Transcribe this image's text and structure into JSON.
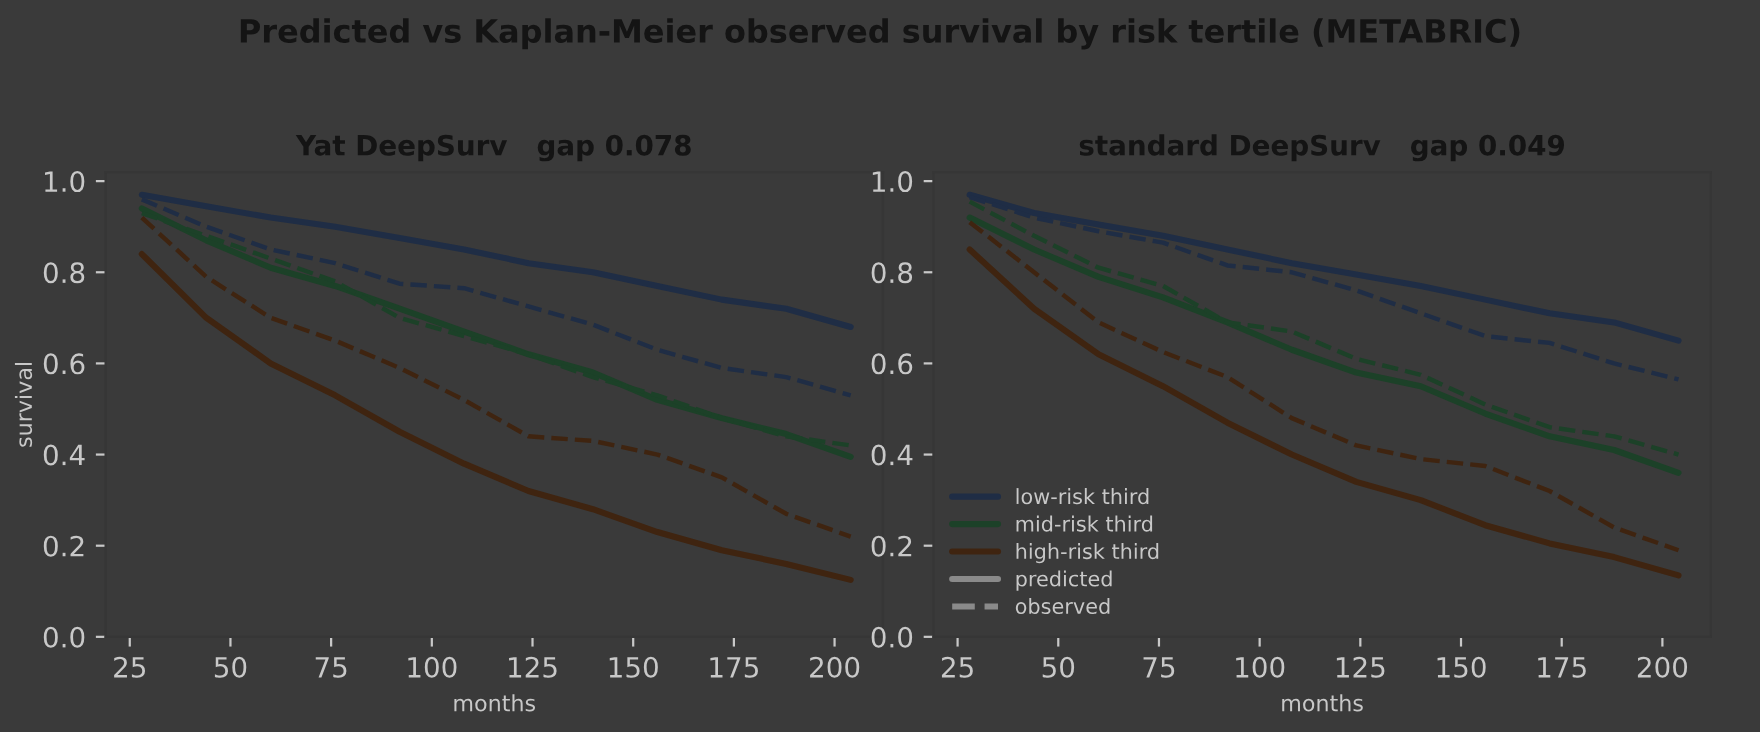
{
  "chart_data": [
    {
      "type": "line",
      "title": "Yat DeepSurv   gap 0.078",
      "xlabel": "months",
      "ylabel": "survival",
      "annotations": [
        "Predicted vs Kaplan-Meier observed survival by risk tertile (METABRIC)"
      ],
      "x": [
        28,
        44,
        60,
        76,
        92,
        108,
        124,
        140,
        156,
        172,
        188,
        204
      ],
      "xlim": [
        19,
        212
      ],
      "xticks": [
        25,
        50,
        75,
        100,
        125,
        150,
        175,
        200
      ],
      "ylim": [
        0,
        1.02
      ],
      "yticks": [
        {
          "value": 0,
          "label": "0.0"
        },
        {
          "value": 0.2,
          "label": "0.2"
        },
        {
          "value": 0.4,
          "label": "0.4"
        },
        {
          "value": 0.6,
          "label": "0.6"
        },
        {
          "value": 0.8,
          "label": "0.8"
        },
        {
          "value": 1,
          "label": "1.0"
        }
      ],
      "grid": false,
      "legend": false,
      "series": [
        {
          "color": "#1f2d45",
          "line_style": "solid",
          "values": [
            0.97,
            0.945,
            0.92,
            0.9,
            0.875,
            0.85,
            0.82,
            0.8,
            0.77,
            0.74,
            0.72,
            0.68
          ]
        },
        {
          "color": "#1f2d45",
          "line_style": "dashed",
          "values": [
            0.96,
            0.9,
            0.85,
            0.82,
            0.775,
            0.765,
            0.725,
            0.685,
            0.63,
            0.59,
            0.57,
            0.53
          ]
        },
        {
          "color": "#1c4128",
          "line_style": "solid",
          "values": [
            0.94,
            0.87,
            0.81,
            0.77,
            0.72,
            0.67,
            0.62,
            0.58,
            0.52,
            0.48,
            0.445,
            0.395
          ]
        },
        {
          "color": "#1c4128",
          "line_style": "dashed",
          "values": [
            0.93,
            0.88,
            0.83,
            0.78,
            0.7,
            0.66,
            0.62,
            0.57,
            0.53,
            0.48,
            0.44,
            0.42
          ]
        },
        {
          "color": "#3f2410",
          "line_style": "solid",
          "values": [
            0.84,
            0.7,
            0.6,
            0.53,
            0.45,
            0.38,
            0.32,
            0.28,
            0.23,
            0.19,
            0.16,
            0.125
          ]
        },
        {
          "color": "#3f2410",
          "line_style": "dashed",
          "values": [
            0.92,
            0.79,
            0.7,
            0.65,
            0.59,
            0.52,
            0.44,
            0.43,
            0.4,
            0.35,
            0.27,
            0.22
          ]
        }
      ]
    },
    {
      "type": "line",
      "title": "standard DeepSurv   gap 0.049",
      "xlabel": "months",
      "annotations": [
        "predicted",
        "observed"
      ],
      "x": [
        28,
        44,
        60,
        76,
        92,
        108,
        124,
        140,
        156,
        172,
        188,
        204
      ],
      "xlim": [
        19,
        212
      ],
      "xticks": [
        25,
        50,
        75,
        100,
        125,
        150,
        175,
        200
      ],
      "ylim": [
        0,
        1.02
      ],
      "yticks": [
        {
          "value": 0,
          "label": "0.0"
        },
        {
          "value": 0.2,
          "label": "0.2"
        },
        {
          "value": 0.4,
          "label": "0.4"
        },
        {
          "value": 0.6,
          "label": "0.6"
        },
        {
          "value": 0.8,
          "label": "0.8"
        },
        {
          "value": 1,
          "label": "1.0"
        }
      ],
      "grid": false,
      "legend": "bottom left",
      "series": [
        {
          "name": "low-risk third",
          "color": "#1f2d45",
          "line_style": "solid",
          "values": [
            0.97,
            0.93,
            0.905,
            0.88,
            0.85,
            0.82,
            0.795,
            0.77,
            0.74,
            0.71,
            0.69,
            0.65
          ]
        },
        {
          "color": "#1f2d45",
          "line_style": "dashed",
          "values": [
            0.965,
            0.92,
            0.89,
            0.865,
            0.815,
            0.8,
            0.76,
            0.71,
            0.66,
            0.645,
            0.6,
            0.565
          ]
        },
        {
          "name": "mid-risk third",
          "color": "#1c4128",
          "line_style": "solid",
          "values": [
            0.92,
            0.85,
            0.79,
            0.745,
            0.69,
            0.63,
            0.58,
            0.55,
            0.49,
            0.44,
            0.41,
            0.36
          ]
        },
        {
          "color": "#1c4128",
          "line_style": "dashed",
          "values": [
            0.955,
            0.88,
            0.81,
            0.77,
            0.69,
            0.67,
            0.61,
            0.575,
            0.51,
            0.46,
            0.44,
            0.4
          ]
        },
        {
          "name": "high-risk third",
          "color": "#3f2410",
          "line_style": "solid",
          "values": [
            0.85,
            0.72,
            0.62,
            0.55,
            0.47,
            0.4,
            0.34,
            0.3,
            0.245,
            0.205,
            0.175,
            0.135
          ]
        },
        {
          "color": "#3f2410",
          "line_style": "dashed",
          "values": [
            0.91,
            0.8,
            0.69,
            0.625,
            0.57,
            0.48,
            0.42,
            0.39,
            0.375,
            0.32,
            0.24,
            0.19
          ]
        }
      ]
    }
  ]
}
